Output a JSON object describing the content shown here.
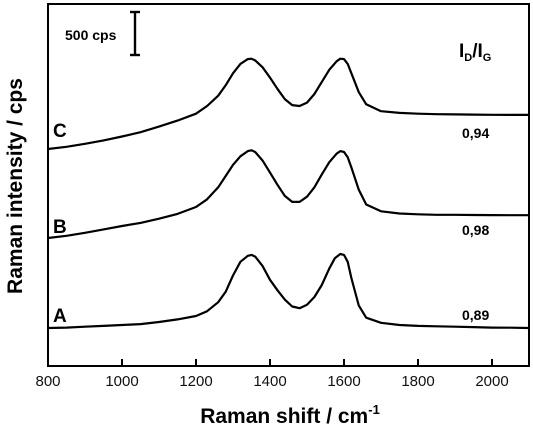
{
  "chart_data": {
    "type": "line",
    "xlabel_main": "Raman shift / cm",
    "xlabel_sup": "-1",
    "ylabel": "Raman intensity / cps",
    "xlim": [
      800,
      2100
    ],
    "xticks": [
      800,
      1000,
      1200,
      1400,
      1600,
      1800,
      2000
    ],
    "y_ticks_shown": false,
    "grid": false,
    "scale_bar": {
      "label": "500 cps",
      "cps": 500
    },
    "ratio_header": {
      "main": "I",
      "sub_d": "D",
      "sep": "/I",
      "sub_g": "G"
    },
    "series": [
      {
        "name": "A",
        "ratio": "0,89",
        "x": [
          800,
          850,
          900,
          950,
          1000,
          1050,
          1100,
          1150,
          1200,
          1230,
          1260,
          1280,
          1300,
          1320,
          1340,
          1350,
          1360,
          1380,
          1400,
          1420,
          1440,
          1460,
          1480,
          1500,
          1520,
          1540,
          1560,
          1575,
          1590,
          1600,
          1610,
          1620,
          1640,
          1660,
          1700,
          1750,
          1800,
          1850,
          1900,
          1950,
          2000,
          2050,
          2100
        ],
        "y": [
          0,
          5,
          15,
          25,
          35,
          45,
          70,
          100,
          140,
          195,
          300,
          420,
          610,
          770,
          840,
          850,
          830,
          720,
          560,
          440,
          330,
          250,
          230,
          270,
          360,
          500,
          690,
          810,
          860,
          850,
          770,
          580,
          260,
          120,
          60,
          35,
          25,
          20,
          15,
          10,
          5,
          3,
          0
        ]
      },
      {
        "name": "B",
        "ratio": "0,98",
        "x": [
          800,
          850,
          900,
          950,
          1000,
          1050,
          1100,
          1150,
          1200,
          1230,
          1260,
          1280,
          1300,
          1320,
          1340,
          1350,
          1360,
          1380,
          1400,
          1420,
          1440,
          1460,
          1480,
          1500,
          1520,
          1540,
          1560,
          1580,
          1590,
          1600,
          1610,
          1620,
          1640,
          1660,
          1700,
          1750,
          1800,
          1850,
          1900,
          1950,
          2000,
          2050,
          2100
        ],
        "y": [
          0,
          25,
          60,
          100,
          140,
          175,
          225,
          280,
          360,
          450,
          590,
          720,
          850,
          950,
          1010,
          1020,
          1000,
          900,
          760,
          620,
          490,
          420,
          420,
          480,
          590,
          740,
          880,
          980,
          1010,
          1000,
          940,
          820,
          560,
          390,
          310,
          285,
          275,
          270,
          270,
          268,
          266,
          265,
          265
        ]
      },
      {
        "name": "C",
        "ratio": "0,94",
        "x": [
          800,
          850,
          900,
          950,
          1000,
          1050,
          1100,
          1150,
          1200,
          1230,
          1260,
          1280,
          1300,
          1320,
          1340,
          1350,
          1360,
          1380,
          1400,
          1420,
          1440,
          1460,
          1480,
          1500,
          1520,
          1540,
          1560,
          1580,
          1590,
          1600,
          1610,
          1620,
          1640,
          1660,
          1700,
          1750,
          1800,
          1850,
          1900,
          1950,
          2000,
          2050,
          2100
        ],
        "y": [
          0,
          25,
          60,
          100,
          145,
          195,
          260,
          330,
          410,
          500,
          620,
          740,
          880,
          990,
          1045,
          1050,
          1030,
          950,
          830,
          700,
          580,
          510,
          500,
          540,
          640,
          780,
          920,
          1020,
          1050,
          1045,
          990,
          880,
          660,
          520,
          440,
          420,
          410,
          405,
          402,
          400,
          398,
          397,
          396
        ]
      }
    ]
  }
}
